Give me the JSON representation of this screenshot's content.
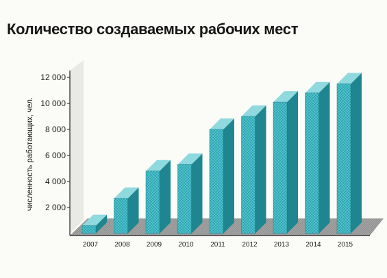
{
  "chart_data": {
    "type": "bar",
    "title": "Количество создаваемых рабочих мест",
    "xlabel": "",
    "ylabel": "численность работающих, чел.",
    "categories": [
      "2007",
      "2008",
      "2009",
      "2010",
      "2011",
      "2012",
      "2013",
      "2014",
      "2015"
    ],
    "values": [
      600,
      2700,
      4800,
      5300,
      8000,
      9000,
      10100,
      10800,
      11500
    ],
    "ylim": [
      0,
      12000
    ],
    "yticks": [
      2000,
      4000,
      6000,
      8000,
      10000,
      12000
    ],
    "ytick_labels": [
      "2 000",
      "4 000",
      "6 000",
      "8 000",
      "10 000",
      "12 000"
    ],
    "grid": false,
    "legend": "none",
    "colors": {
      "bar_front": "#3cb8c4",
      "bar_side": "#1f8590",
      "bar_top": "#8fd9df",
      "floor": "#9a9a9a",
      "wall": "#e9e9e6"
    }
  }
}
